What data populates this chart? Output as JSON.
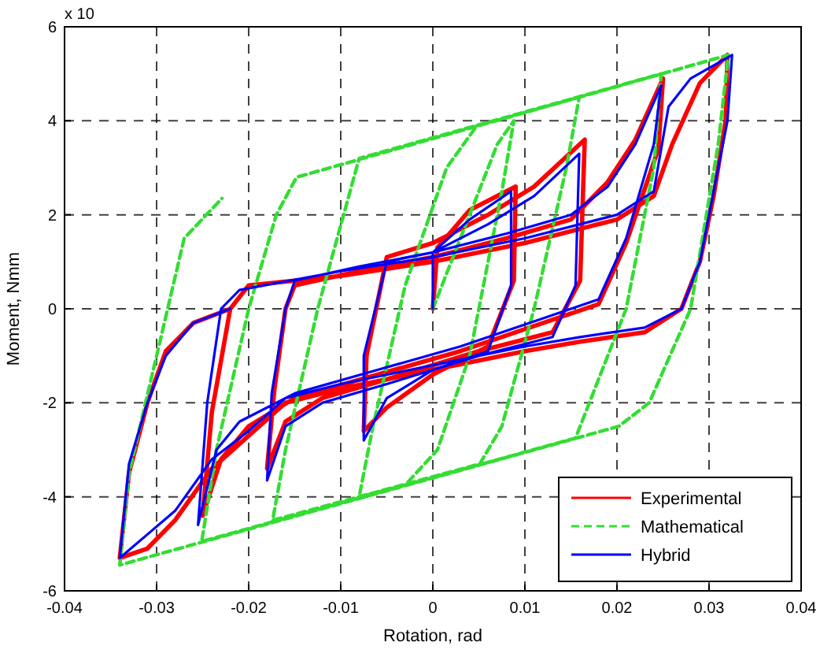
{
  "chart_data": {
    "type": "line",
    "xlabel": "Rotation, rad",
    "ylabel": "Moment, Nmm",
    "annotations": [
      "x 10"
    ],
    "xlim": [
      -0.04,
      0.04
    ],
    "xticks": [
      -0.04,
      -0.03,
      -0.02,
      -0.01,
      0,
      0.01,
      0.02,
      0.03,
      0.04
    ],
    "ylim": [
      -6,
      6
    ],
    "yticks": [
      -6,
      -4,
      -2,
      0,
      2,
      4,
      6
    ],
    "grid": true,
    "legend": "bottom right",
    "marker": "none",
    "series": [
      {
        "name": "Experimental",
        "color": "#ff0000",
        "line_style": "solid",
        "x": [
          0,
          0.0005,
          0.004,
          0.009,
          0.0088,
          0.006,
          0.0,
          -0.005,
          -0.0075,
          -0.0072,
          -0.005,
          0.0,
          0.006,
          0.011,
          0.0165,
          0.016,
          0.013,
          0.005,
          -0.005,
          -0.012,
          -0.016,
          -0.018,
          -0.0172,
          -0.016,
          -0.015,
          -0.008,
          0.0,
          0.008,
          0.015,
          0.019,
          0.022,
          0.025,
          0.0245,
          0.021,
          0.018,
          0.012,
          0.003,
          -0.006,
          -0.015,
          -0.02,
          -0.023,
          -0.025,
          -0.024,
          -0.022,
          -0.02,
          -0.01,
          0,
          0.01,
          0.02,
          0.024,
          0.026,
          0.029,
          0.032,
          0.0318,
          0.0305,
          0.029,
          0.027,
          0.023,
          0.016,
          0.01,
          0.0,
          -0.01,
          -0.016,
          -0.02,
          -0.024,
          -0.028,
          -0.031,
          -0.034,
          -0.033,
          -0.031,
          -0.029,
          -0.026,
          -0.022
        ],
        "values": [
          0,
          1.3,
          2.1,
          2.6,
          0.6,
          -0.8,
          -1.4,
          -2.1,
          -2.6,
          -1.0,
          1.1,
          1.4,
          2.0,
          2.6,
          3.6,
          0.6,
          -0.5,
          -0.9,
          -1.5,
          -1.9,
          -2.4,
          -3.4,
          -1.7,
          0,
          0.5,
          0.8,
          1.1,
          1.5,
          1.9,
          2.7,
          3.6,
          4.9,
          3.4,
          1.4,
          0.1,
          -0.3,
          -0.9,
          -1.4,
          -1.9,
          -2.5,
          -3.2,
          -4.4,
          -2.2,
          0,
          0.5,
          0.7,
          1.0,
          1.4,
          1.9,
          2.4,
          3.5,
          4.8,
          5.4,
          4.0,
          2.4,
          1.0,
          0.0,
          -0.5,
          -0.7,
          -0.9,
          -1.3,
          -1.7,
          -2.0,
          -2.7,
          -3.4,
          -4.5,
          -5.1,
          -5.3,
          -3.5,
          -2.0,
          -0.9,
          -0.3,
          0
        ]
      },
      {
        "name": "Mathematical",
        "color": "#33dd33",
        "line_style": "dashed",
        "x": [
          0,
          0.004,
          0.007,
          0.0088,
          0.0075,
          0.004,
          0.0005,
          -0.003,
          -0.008,
          -0.0065,
          -0.003,
          0.0015,
          0.0048,
          0.0159,
          0.0145,
          0.011,
          0.0075,
          0.0051,
          -0.0174,
          -0.016,
          -0.0125,
          -0.008,
          0.0248,
          0.024,
          0.021,
          0.017,
          0.0155,
          -0.0251,
          -0.0235,
          -0.02,
          -0.017,
          -0.0148,
          0.0321,
          0.031,
          0.028,
          0.0235,
          0.0202,
          -0.034,
          -0.033,
          -0.03,
          -0.027,
          -0.0229
        ],
        "values": [
          0,
          2.0,
          3.5,
          4.0,
          2.5,
          -1.0,
          -3.0,
          -3.75,
          -4.0,
          -2.5,
          0.5,
          3.0,
          3.9,
          4.5,
          3.0,
          0,
          -2.5,
          -3.3,
          -4.5,
          -3.0,
          0,
          3.2,
          5.0,
          3.0,
          0,
          -2.0,
          -2.75,
          -4.95,
          -3.0,
          0,
          2.0,
          2.8,
          5.4,
          3.5,
          0,
          -2.0,
          -2.5,
          -5.45,
          -3.5,
          -1.0,
          1.5,
          2.35
        ]
      },
      {
        "name": "Hybrid",
        "color": "#0000ff",
        "line_style": "solid",
        "x": [
          0,
          0,
          0.004,
          0.0085,
          0.0085,
          0.006,
          0.0,
          -0.005,
          -0.0075,
          -0.0075,
          -0.005,
          0.0,
          0.006,
          0.011,
          0.0159,
          0.0155,
          0.013,
          0.005,
          -0.005,
          -0.012,
          -0.016,
          -0.018,
          -0.0175,
          -0.016,
          -0.015,
          -0.008,
          0.0,
          0.008,
          0.015,
          0.019,
          0.022,
          0.0248,
          0.024,
          0.021,
          0.018,
          0.012,
          0.003,
          -0.006,
          -0.015,
          -0.021,
          -0.0235,
          -0.0255,
          -0.0245,
          -0.023,
          -0.021,
          -0.01,
          0,
          0.01,
          0.02,
          0.024,
          0.0256,
          0.028,
          0.0325,
          0.032,
          0.0305,
          0.029,
          0.027,
          0.023,
          0.016,
          0.01,
          0.0,
          -0.01,
          -0.016,
          -0.02,
          -0.024,
          -0.028,
          -0.031,
          -0.034,
          -0.033,
          -0.031,
          -0.029,
          -0.026,
          -0.022
        ],
        "values": [
          0,
          1.2,
          1.9,
          2.5,
          0.5,
          -0.9,
          -1.3,
          -1.9,
          -2.8,
          -1.0,
          1.0,
          1.2,
          1.8,
          2.4,
          3.3,
          0.5,
          -0.6,
          -1.0,
          -1.6,
          -2.0,
          -2.5,
          -3.65,
          -1.8,
          0,
          0.6,
          0.9,
          1.2,
          1.6,
          2.0,
          2.6,
          3.5,
          4.75,
          3.5,
          1.5,
          0.2,
          -0.2,
          -0.8,
          -1.3,
          -1.8,
          -2.4,
          -3.0,
          -4.6,
          -2.0,
          0,
          0.4,
          0.8,
          1.1,
          1.5,
          2.0,
          2.5,
          4.3,
          4.9,
          5.4,
          4.0,
          2.5,
          1.0,
          0,
          -0.4,
          -0.6,
          -0.8,
          -1.2,
          -1.6,
          -1.9,
          -2.6,
          -3.2,
          -4.3,
          -4.8,
          -5.3,
          -3.3,
          -2.0,
          -1.0,
          -0.3,
          0
        ]
      }
    ]
  }
}
